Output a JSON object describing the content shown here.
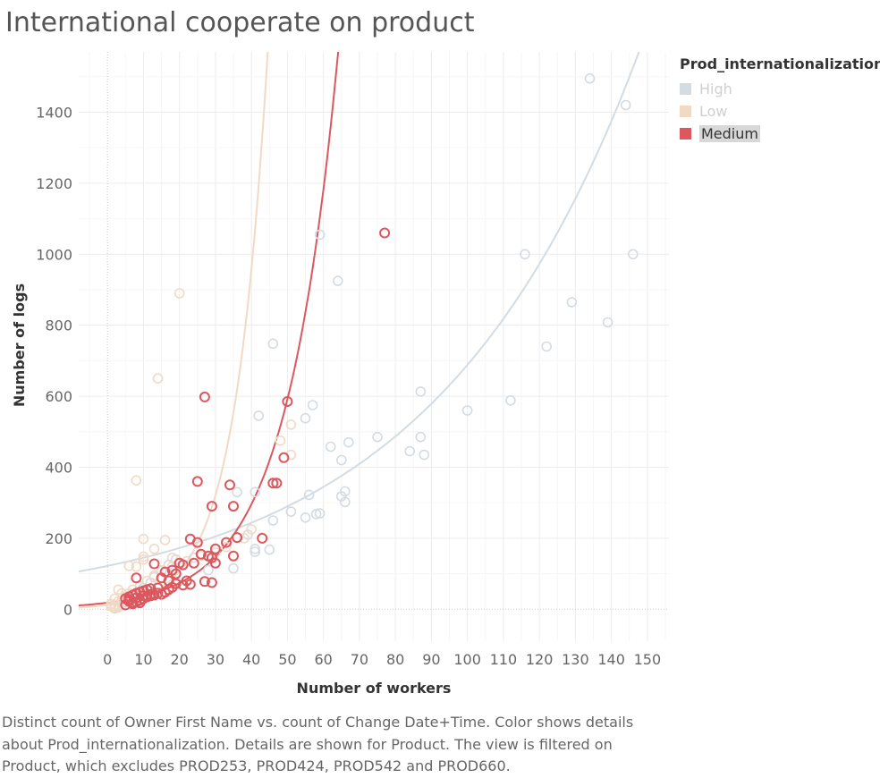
{
  "chart_data": {
    "type": "scatter",
    "title": "International cooperate on product",
    "xlabel": "Number of workers",
    "ylabel": "Number of logs",
    "xlim": [
      -8,
      156
    ],
    "ylim": [
      -90,
      1570
    ],
    "xticks": [
      0,
      10,
      20,
      30,
      40,
      50,
      60,
      70,
      80,
      90,
      100,
      110,
      120,
      130,
      140,
      150
    ],
    "yticks": [
      0,
      200,
      400,
      600,
      800,
      1000,
      1200,
      1400
    ],
    "grid": true,
    "legend": {
      "title": "Prod_internationalization",
      "placement": "right",
      "entries": [
        {
          "label": "High",
          "color": "#d3dbe3",
          "state": "dimmed"
        },
        {
          "label": "Low",
          "color": "#f2d9c4",
          "state": "dimmed"
        },
        {
          "label": "Medium",
          "color": "#dd575e",
          "state": "selected"
        }
      ]
    },
    "series": [
      {
        "name": "High",
        "color": "#d3dbe3",
        "trend": {
          "type": "exponential",
          "a": 122,
          "b": 0.0173
        },
        "points": [
          [
            134,
            1495
          ],
          [
            144,
            1420
          ],
          [
            59,
            1055
          ],
          [
            116,
            1000
          ],
          [
            146,
            1000
          ],
          [
            64,
            925
          ],
          [
            129,
            865
          ],
          [
            139,
            808
          ],
          [
            122,
            740
          ],
          [
            46,
            748
          ],
          [
            87,
            613
          ],
          [
            42,
            545
          ],
          [
            57,
            575
          ],
          [
            55,
            538
          ],
          [
            100,
            560
          ],
          [
            112,
            588
          ],
          [
            75,
            485
          ],
          [
            87,
            485
          ],
          [
            67,
            470
          ],
          [
            62,
            458
          ],
          [
            84,
            445
          ],
          [
            88,
            435
          ],
          [
            65,
            420
          ],
          [
            36,
            330
          ],
          [
            41,
            330
          ],
          [
            56,
            322
          ],
          [
            66,
            332
          ],
          [
            65,
            318
          ],
          [
            66,
            302
          ],
          [
            51,
            275
          ],
          [
            59,
            270
          ],
          [
            58,
            268
          ],
          [
            55,
            258
          ],
          [
            46,
            250
          ],
          [
            39,
            210
          ],
          [
            45,
            168
          ],
          [
            41,
            162
          ],
          [
            41,
            170
          ],
          [
            35,
            115
          ],
          [
            28,
            110
          ],
          [
            24,
            145
          ],
          [
            19,
            140
          ],
          [
            17,
            125
          ],
          [
            15,
            108
          ],
          [
            13,
            90
          ],
          [
            12,
            75
          ],
          [
            10,
            60
          ],
          [
            9,
            50
          ],
          [
            8,
            40
          ],
          [
            7,
            32
          ],
          [
            6,
            25
          ],
          [
            5,
            20
          ],
          [
            4,
            12
          ],
          [
            3,
            8
          ],
          [
            2,
            5
          ]
        ]
      },
      {
        "name": "Low",
        "color": "#f2d9c4",
        "trend": {
          "type": "exponential",
          "a": 12,
          "b": 0.1095
        },
        "points": [
          [
            20,
            890
          ],
          [
            14,
            650
          ],
          [
            8,
            363
          ],
          [
            10,
            198
          ],
          [
            16,
            195
          ],
          [
            13,
            170
          ],
          [
            48,
            475
          ],
          [
            51,
            520
          ],
          [
            51,
            435
          ],
          [
            40,
            225
          ],
          [
            18,
            145
          ],
          [
            20,
            130
          ],
          [
            10,
            148
          ],
          [
            10,
            140
          ],
          [
            6,
            122
          ],
          [
            8,
            120
          ],
          [
            3,
            55
          ],
          [
            4,
            45
          ],
          [
            2,
            30
          ],
          [
            3,
            22
          ],
          [
            1,
            15
          ],
          [
            2,
            12
          ],
          [
            1,
            8
          ],
          [
            3,
            5
          ],
          [
            2,
            2
          ],
          [
            4,
            25
          ],
          [
            5,
            35
          ],
          [
            6,
            45
          ],
          [
            7,
            55
          ],
          [
            9,
            65
          ],
          [
            11,
            80
          ],
          [
            13,
            95
          ],
          [
            15,
            110
          ],
          [
            18,
            120
          ],
          [
            22,
            135
          ],
          [
            26,
            150
          ],
          [
            30,
            160
          ],
          [
            33,
            175
          ],
          [
            38,
            200
          ]
        ]
      },
      {
        "name": "Medium",
        "color": "#dd575e",
        "trend": {
          "type": "exponential",
          "a": 18.5,
          "b": 0.0693
        },
        "points": [
          [
            77,
            1060
          ],
          [
            27,
            598
          ],
          [
            50,
            585
          ],
          [
            49,
            427
          ],
          [
            25,
            360
          ],
          [
            34,
            350
          ],
          [
            46,
            355
          ],
          [
            47,
            355
          ],
          [
            29,
            290
          ],
          [
            35,
            290
          ],
          [
            36,
            202
          ],
          [
            43,
            200
          ],
          [
            23,
            198
          ],
          [
            25,
            188
          ],
          [
            33,
            188
          ],
          [
            30,
            170
          ],
          [
            26,
            155
          ],
          [
            28,
            150
          ],
          [
            35,
            150
          ],
          [
            29,
            145
          ],
          [
            30,
            130
          ],
          [
            24,
            130
          ],
          [
            21,
            125
          ],
          [
            20,
            130
          ],
          [
            18,
            110
          ],
          [
            16,
            105
          ],
          [
            19,
            100
          ],
          [
            13,
            128
          ],
          [
            8,
            88
          ],
          [
            15,
            88
          ],
          [
            17,
            80
          ],
          [
            22,
            80
          ],
          [
            27,
            78
          ],
          [
            29,
            75
          ],
          [
            23,
            70
          ],
          [
            21,
            68
          ],
          [
            19,
            72
          ],
          [
            18,
            62
          ],
          [
            14,
            60
          ],
          [
            12,
            58
          ],
          [
            11,
            55
          ],
          [
            10,
            52
          ],
          [
            9,
            48
          ],
          [
            8,
            45
          ],
          [
            7,
            40
          ],
          [
            6,
            35
          ],
          [
            5,
            30
          ],
          [
            6,
            22
          ],
          [
            7,
            18
          ],
          [
            8,
            20
          ],
          [
            9,
            25
          ],
          [
            10,
            30
          ],
          [
            11,
            35
          ],
          [
            12,
            38
          ],
          [
            13,
            40
          ],
          [
            14,
            45
          ],
          [
            15,
            42
          ],
          [
            16,
            48
          ],
          [
            17,
            55
          ],
          [
            5,
            12
          ],
          [
            7,
            15
          ],
          [
            9,
            18
          ],
          [
            6,
            28
          ],
          [
            8,
            32
          ],
          [
            10,
            38
          ],
          [
            12,
            42
          ]
        ]
      }
    ]
  },
  "caption": {
    "line1": "Distinct count of Owner First Name vs. count of Change Date+Time.  Color shows details",
    "line2": "about Prod_internationalization.  Details are shown for Product. The view is filtered on",
    "line3": "Product, which excludes PROD253, PROD424, PROD542 and PROD660."
  }
}
